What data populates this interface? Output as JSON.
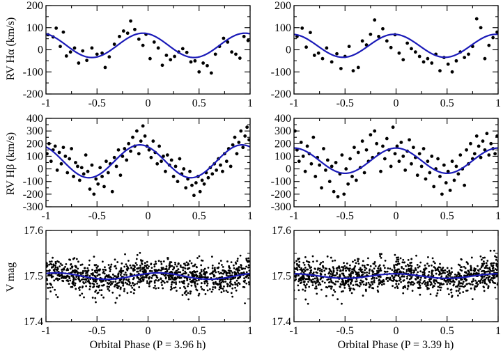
{
  "chart_data": [
    {
      "type": "scatter",
      "id": "ha-left",
      "ylabel": "RV Hα (km/s)",
      "xlim": [
        -1,
        1
      ],
      "ylim": [
        -200,
        200
      ],
      "xticks": [
        "-1",
        "-0.5",
        "0",
        "0.5",
        "1"
      ],
      "yticks": [
        "-200",
        "-100",
        "0",
        "100",
        "200"
      ],
      "fit": {
        "gamma": 20,
        "K": 55,
        "phase_of_max": -0.05
      },
      "x": [
        -0.98,
        -0.93,
        -0.9,
        -0.86,
        -0.83,
        -0.8,
        -0.76,
        -0.72,
        -0.68,
        -0.64,
        -0.6,
        -0.55,
        -0.5,
        -0.45,
        -0.42,
        -0.38,
        -0.33,
        -0.28,
        -0.24,
        -0.2,
        -0.17,
        -0.13,
        -0.09,
        -0.05,
        -0.02,
        0.02,
        0.06,
        0.1,
        0.14,
        0.18,
        0.22,
        0.26,
        0.3,
        0.34,
        0.38,
        0.42,
        0.46,
        0.5,
        0.54,
        0.58,
        0.62,
        0.66,
        0.7,
        0.74,
        0.78,
        0.82,
        0.86,
        0.9,
        0.94,
        0.98
      ],
      "y": [
        68,
        58,
        98,
        15,
        80,
        -28,
        -10,
        8,
        -60,
        -5,
        -48,
        8,
        -20,
        -15,
        -80,
        -32,
        25,
        60,
        85,
        75,
        130,
        92,
        48,
        20,
        70,
        -40,
        35,
        8,
        -70,
        -25,
        -45,
        -30,
        -10,
        5,
        -12,
        -55,
        -50,
        -100,
        -60,
        -72,
        -105,
        -20,
        15,
        52,
        35,
        -10,
        -20,
        -38,
        60,
        42
      ]
    },
    {
      "type": "scatter",
      "id": "ha-right",
      "xlim": [
        -1,
        1
      ],
      "ylim": [
        -200,
        200
      ],
      "xticks": [
        "-1",
        "-0.5",
        "0",
        "0.5",
        "1"
      ],
      "yticks": [
        "-200",
        "-100",
        "0",
        "100",
        "200"
      ],
      "fit": {
        "gamma": 18,
        "K": 52,
        "phase_of_max": -0.02
      },
      "x": [
        -0.97,
        -0.92,
        -0.88,
        -0.84,
        -0.8,
        -0.76,
        -0.72,
        -0.68,
        -0.63,
        -0.58,
        -0.54,
        -0.5,
        -0.46,
        -0.42,
        -0.37,
        -0.33,
        -0.29,
        -0.25,
        -0.21,
        -0.17,
        -0.13,
        -0.09,
        -0.05,
        -0.01,
        0.03,
        0.07,
        0.11,
        0.15,
        0.19,
        0.23,
        0.27,
        0.31,
        0.35,
        0.39,
        0.43,
        0.47,
        0.51,
        0.55,
        0.59,
        0.63,
        0.67,
        0.71,
        0.75,
        0.79,
        0.83,
        0.87,
        0.91,
        0.95,
        0.99
      ],
      "y": [
        60,
        98,
        12,
        78,
        -25,
        -15,
        -40,
        8,
        -55,
        -18,
        -85,
        -30,
        15,
        -95,
        -80,
        40,
        22,
        70,
        135,
        60,
        95,
        40,
        10,
        68,
        -15,
        -45,
        30,
        5,
        -10,
        -30,
        -55,
        -40,
        -60,
        -20,
        -95,
        -35,
        -65,
        -100,
        -50,
        -10,
        -35,
        -20,
        15,
        140,
        100,
        -40,
        20,
        55,
        80
      ]
    },
    {
      "type": "scatter",
      "id": "hb-left",
      "ylabel": "RV Hβ (km/s)",
      "xlim": [
        -1,
        1
      ],
      "ylim": [
        -300,
        400
      ],
      "xticks": [
        "-1",
        "-0.5",
        "0",
        "0.5",
        "1"
      ],
      "yticks": [
        "-300",
        "-200",
        "-100",
        "0",
        "100",
        "200",
        "300",
        "400"
      ],
      "fit": {
        "gamma": 60,
        "K": 130,
        "phase_of_max": -0.08
      },
      "x": [
        -0.99,
        -0.97,
        -0.95,
        -0.93,
        -0.91,
        -0.89,
        -0.87,
        -0.85,
        -0.83,
        -0.81,
        -0.79,
        -0.77,
        -0.75,
        -0.73,
        -0.71,
        -0.69,
        -0.67,
        -0.65,
        -0.63,
        -0.61,
        -0.59,
        -0.57,
        -0.55,
        -0.53,
        -0.51,
        -0.49,
        -0.47,
        -0.45,
        -0.43,
        -0.41,
        -0.39,
        -0.37,
        -0.35,
        -0.33,
        -0.31,
        -0.29,
        -0.27,
        -0.25,
        -0.23,
        -0.21,
        -0.19,
        -0.17,
        -0.15,
        -0.13,
        -0.11,
        -0.09,
        -0.07,
        -0.05,
        -0.03,
        -0.01,
        0.01,
        0.03,
        0.05,
        0.07,
        0.09,
        0.11,
        0.13,
        0.15,
        0.17,
        0.19,
        0.21,
        0.23,
        0.25,
        0.27,
        0.29,
        0.31,
        0.33,
        0.35,
        0.37,
        0.39,
        0.41,
        0.43,
        0.45,
        0.47,
        0.49,
        0.51,
        0.53,
        0.55,
        0.57,
        0.59,
        0.61,
        0.63,
        0.65,
        0.67,
        0.69,
        0.71,
        0.73,
        0.75,
        0.77,
        0.79,
        0.81,
        0.83,
        0.85,
        0.87,
        0.89,
        0.91,
        0.93,
        0.95,
        0.97,
        0.99
      ],
      "y": [
        120,
        200,
        60,
        150,
        180,
        -10,
        130,
        40,
        170,
        100,
        -30,
        80,
        160,
        -60,
        50,
        20,
        -90,
        10,
        -40,
        110,
        -20,
        -160,
        30,
        -200,
        -80,
        -120,
        10,
        -60,
        -140,
        60,
        -30,
        40,
        -180,
        90,
        20,
        150,
        -50,
        100,
        160,
        70,
        200,
        140,
        250,
        180,
        300,
        120,
        220,
        340,
        260,
        180,
        150,
        90,
        220,
        130,
        40,
        180,
        60,
        100,
        -20,
        110,
        30,
        70,
        -60,
        20,
        -100,
        80,
        -40,
        0,
        -150,
        -80,
        -20,
        -130,
        -210,
        -110,
        -60,
        -180,
        -90,
        -120,
        -30,
        -70,
        10,
        -40,
        40,
        -10,
        80,
        30,
        -20,
        120,
        60,
        160,
        20,
        190,
        250,
        120,
        210,
        300,
        170,
        260,
        330,
        230
      ]
    },
    {
      "type": "scatter",
      "id": "hb-right",
      "xlim": [
        -1,
        1
      ],
      "ylim": [
        -300,
        400
      ],
      "xticks": [
        "-1",
        "-0.5",
        "0",
        "0.5",
        "1"
      ],
      "yticks": [
        "-300",
        "-200",
        "-100",
        "0",
        "100",
        "200",
        "300",
        "400"
      ],
      "fit": {
        "gamma": 65,
        "K": 100,
        "phase_of_max": 0.0
      },
      "x": [
        -0.99,
        -0.97,
        -0.95,
        -0.93,
        -0.91,
        -0.89,
        -0.87,
        -0.85,
        -0.83,
        -0.81,
        -0.79,
        -0.77,
        -0.75,
        -0.73,
        -0.71,
        -0.69,
        -0.67,
        -0.65,
        -0.63,
        -0.61,
        -0.59,
        -0.57,
        -0.55,
        -0.53,
        -0.51,
        -0.49,
        -0.47,
        -0.45,
        -0.43,
        -0.41,
        -0.39,
        -0.37,
        -0.35,
        -0.33,
        -0.31,
        -0.29,
        -0.27,
        -0.25,
        -0.23,
        -0.21,
        -0.19,
        -0.17,
        -0.15,
        -0.13,
        -0.11,
        -0.09,
        -0.07,
        -0.05,
        -0.03,
        -0.01,
        0.01,
        0.03,
        0.05,
        0.07,
        0.09,
        0.11,
        0.13,
        0.15,
        0.17,
        0.19,
        0.21,
        0.23,
        0.25,
        0.27,
        0.29,
        0.31,
        0.33,
        0.35,
        0.37,
        0.39,
        0.41,
        0.43,
        0.45,
        0.47,
        0.49,
        0.51,
        0.53,
        0.55,
        0.57,
        0.59,
        0.61,
        0.63,
        0.65,
        0.67,
        0.69,
        0.71,
        0.73,
        0.75,
        0.77,
        0.79,
        0.81,
        0.83,
        0.85,
        0.87,
        0.89,
        0.91,
        0.93,
        0.95,
        0.97,
        0.99
      ],
      "y": [
        300,
        150,
        60,
        210,
        100,
        -20,
        180,
        120,
        40,
        250,
        -60,
        90,
        30,
        -150,
        160,
        -10,
        70,
        -100,
        20,
        -180,
        50,
        -220,
        -40,
        110,
        -200,
        0,
        -120,
        80,
        -60,
        170,
        -90,
        130,
        10,
        220,
        -30,
        150,
        60,
        270,
        90,
        300,
        200,
        120,
        -20,
        180,
        80,
        240,
        150,
        20,
        330,
        120,
        180,
        60,
        210,
        100,
        -10,
        140,
        230,
        40,
        170,
        90,
        -50,
        120,
        20,
        160,
        -80,
        60,
        -30,
        100,
        -140,
        0,
        80,
        -60,
        -200,
        30,
        -110,
        -20,
        -170,
        60,
        -90,
        20,
        -40,
        110,
        0,
        -130,
        150,
        40,
        200,
        80,
        120,
        260,
        180,
        90,
        220,
        150,
        280,
        110,
        200,
        160,
        120,
        260
      ]
    },
    {
      "type": "scatter",
      "id": "v-left",
      "ylabel": "V mag",
      "xlabel": "Orbital Phase (P = 3.96 h)",
      "xlim": [
        -1,
        1
      ],
      "ylim": [
        17.6,
        17.4
      ],
      "xticks": [
        "-1",
        "-0.5",
        "0",
        "0.5",
        "1"
      ],
      "yticks": [
        "17.4",
        "17.5",
        "17.6"
      ],
      "fit": {
        "mean": 17.5,
        "K": 0.007,
        "phase_of_max": 0.1
      },
      "scatter": {
        "n": 1100,
        "sigma": 0.017,
        "range": [
          17.36,
          17.63
        ],
        "seed": 7
      }
    },
    {
      "type": "scatter",
      "id": "v-right",
      "xlabel": "Orbital Phase (P = 3.39 h)",
      "xlim": [
        -1,
        1
      ],
      "ylim": [
        17.6,
        17.4
      ],
      "xticks": [
        "-1",
        "-0.5",
        "0",
        "0.5",
        "1"
      ],
      "yticks": [
        "17.4",
        "17.5",
        "17.6"
      ],
      "fit": {
        "mean": 17.5,
        "K": 0.005,
        "phase_of_max": 0.0
      },
      "scatter": {
        "n": 1100,
        "sigma": 0.018,
        "range": [
          17.36,
          17.63
        ],
        "seed": 11
      }
    }
  ]
}
